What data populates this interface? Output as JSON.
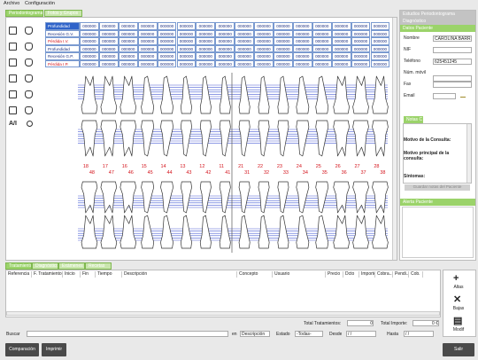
{
  "menu": [
    "Archivo",
    "Configuración"
  ],
  "main_tabs": [
    "Periodontograma",
    "Fotos y Grupos"
  ],
  "tools": {
    "ai_label": "A/I"
  },
  "perio_table": {
    "rows": [
      {
        "label": "Profundidad",
        "cells": [
          "000000",
          "000000",
          "000000",
          "000000",
          "000000",
          "000000",
          "000000",
          "000000",
          "000000",
          "000000",
          "000000",
          "000000",
          "000000",
          "000000",
          "000000",
          "000000"
        ]
      },
      {
        "label": "Recesión G.V.",
        "cells": [
          "000000",
          "000000",
          "000000",
          "000000",
          "000000",
          "000000",
          "000000",
          "000000",
          "000000",
          "000000",
          "000000",
          "000000",
          "000000",
          "000000",
          "000000",
          "000000"
        ]
      },
      {
        "label": "Pérdida I.V.",
        "cells": [
          "000000",
          "000000",
          "000000",
          "000000",
          "000000",
          "000000",
          "000000",
          "000000",
          "000000",
          "000000",
          "000000",
          "000000",
          "000000",
          "000000",
          "000000",
          "000000"
        ]
      },
      {
        "label": "Profundidad",
        "cells": [
          "000000",
          "000000",
          "000000",
          "000000",
          "000000",
          "000000",
          "000000",
          "000000",
          "000000",
          "000000",
          "000000",
          "000000",
          "000000",
          "000000",
          "000000",
          "000000"
        ]
      },
      {
        "label": "Recesión G.P.",
        "cells": [
          "000000",
          "000000",
          "000000",
          "000000",
          "000000",
          "000000",
          "000000",
          "000000",
          "000000",
          "000000",
          "000000",
          "000000",
          "000000",
          "000000",
          "000000",
          "000000"
        ]
      },
      {
        "label": "Pérdida I.P.",
        "cells": [
          "000000",
          "000000",
          "000000",
          "000000",
          "000000",
          "000000",
          "000000",
          "000000",
          "000000",
          "000000",
          "000000",
          "000000",
          "000000",
          "000000",
          "000000",
          "000000"
        ]
      }
    ]
  },
  "teeth": {
    "upper": [
      "18",
      "17",
      "16",
      "15",
      "14",
      "13",
      "12",
      "11",
      "21",
      "22",
      "23",
      "24",
      "25",
      "26",
      "27",
      "28"
    ],
    "lower": [
      "48",
      "47",
      "46",
      "45",
      "44",
      "43",
      "42",
      "41",
      "31",
      "32",
      "33",
      "34",
      "35",
      "36",
      "37",
      "38"
    ]
  },
  "side_tabs": [
    "Estudios Periodontograma",
    "Diagnóstico",
    "Datos Paciente"
  ],
  "patient": {
    "fields": [
      {
        "label": "Nombre",
        "value": "CAROLINA BARR"
      },
      {
        "label": "NIF"
      },
      {
        "label": "Teléfono",
        "value": "625451245"
      },
      {
        "label": "Núm. móvil"
      },
      {
        "label": "Fax"
      },
      {
        "label": "Email"
      }
    ]
  },
  "notes": {
    "tab": "Notas C",
    "lines": [
      "Motivo de la Consulta:",
      "Motivo principal de la consulta:",
      "Síntomas:"
    ],
    "button": "Guardar notas del Paciente"
  },
  "alert": {
    "title": "Alerta Paciente"
  },
  "bottom_tabs": [
    "Tratamientos",
    "Diagnóstico",
    "Exámenes",
    "Recetas"
  ],
  "treatments": {
    "columns": [
      "Referencia",
      "F. Tratamiento",
      "Inicio",
      "Fin",
      "Tiempo",
      "Descripción",
      "Concepto",
      "Usuario",
      "Precio",
      "Dcto",
      "Importe",
      "Cobra...",
      "Pendi...",
      "Cob."
    ]
  },
  "actions": [
    "Altas",
    "Bajas",
    "Modif"
  ],
  "totals": {
    "count_label": "Total Tratamientos:",
    "count": "0",
    "amount_label": "Total Importe:",
    "amount": "0 €"
  },
  "search": {
    "label": "Buscar",
    "in_label": "en",
    "in_value": "Descripción",
    "state_label": "Estado",
    "state_value": "-Todas-",
    "from_label": "Desde",
    "from_value": "/ /",
    "to_label": "Hasta",
    "to_value": "/ /"
  },
  "buttons": {
    "compare": "Comparación",
    "print": "Imprimir",
    "exit": "Salir"
  }
}
